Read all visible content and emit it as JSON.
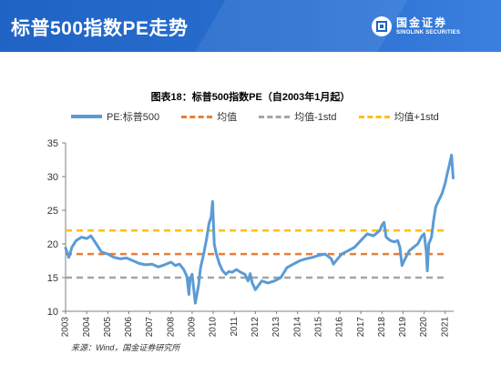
{
  "header": {
    "title": "标普500指数PE走势",
    "logo_cn": "国金证券",
    "logo_en": "SINOLINK SECURITIES"
  },
  "source_note": "来源：Wind，国金证券研究所",
  "colors": {
    "header_bg": "#2a6fd0",
    "pe_line": "#5b9bd5",
    "mean": "#ed7d31",
    "minus1std": "#a5a5a5",
    "plus1std": "#ffc000"
  },
  "chart_data": {
    "type": "line",
    "title": "图表18：标普500指数PE（自2003年1月起）",
    "legend": [
      "PE:标普500",
      "均值",
      "均值-1std",
      "均值+1std"
    ],
    "xlabel": "",
    "ylabel": "",
    "xlim": [
      2003,
      2021.4
    ],
    "ylim": [
      10,
      35
    ],
    "x_ticks": [
      "2003",
      "2004",
      "2005",
      "2006",
      "2007",
      "2008",
      "2009",
      "2010",
      "2011",
      "2012",
      "2013",
      "2014",
      "2015",
      "2016",
      "2017",
      "2018",
      "2019",
      "2020",
      "2021"
    ],
    "y_ticks": [
      "10",
      "15",
      "20",
      "25",
      "30",
      "35"
    ],
    "grid": false,
    "legend_position": "top",
    "series": [
      {
        "name": "PE:标普500",
        "style": "solid",
        "x": [
          2003.0,
          2003.15,
          2003.3,
          2003.5,
          2003.75,
          2004.0,
          2004.2,
          2004.5,
          2004.7,
          2005.0,
          2005.3,
          2005.6,
          2005.9,
          2006.2,
          2006.5,
          2006.8,
          2007.1,
          2007.4,
          2007.7,
          2008.0,
          2008.2,
          2008.4,
          2008.6,
          2008.75,
          2008.85,
          2008.9,
          2009.0,
          2009.15,
          2009.3,
          2009.4,
          2009.55,
          2009.7,
          2009.8,
          2009.9,
          2009.97,
          2010.05,
          2010.15,
          2010.3,
          2010.45,
          2010.6,
          2010.75,
          2010.9,
          2011.1,
          2011.3,
          2011.5,
          2011.65,
          2011.75,
          2011.85,
          2012.0,
          2012.3,
          2012.6,
          2012.9,
          2013.2,
          2013.5,
          2013.8,
          2014.1,
          2014.4,
          2014.7,
          2015.0,
          2015.3,
          2015.6,
          2015.7,
          2015.9,
          2016.1,
          2016.4,
          2016.7,
          2017.0,
          2017.3,
          2017.6,
          2017.9,
          2018.0,
          2018.1,
          2018.2,
          2018.4,
          2018.6,
          2018.75,
          2018.85,
          2018.95,
          2019.1,
          2019.3,
          2019.5,
          2019.7,
          2019.9,
          2020.0,
          2020.1,
          2020.15,
          2020.22,
          2020.35,
          2020.45,
          2020.55,
          2020.7,
          2020.85,
          2021.0,
          2021.1,
          2021.2,
          2021.3,
          2021.38
        ],
        "values": [
          19.4,
          18.0,
          19.5,
          20.5,
          21.0,
          20.8,
          21.2,
          19.8,
          18.8,
          18.5,
          18.0,
          17.8,
          17.9,
          17.5,
          17.1,
          16.9,
          17.0,
          16.6,
          16.9,
          17.3,
          16.8,
          17.0,
          16.2,
          15.2,
          12.5,
          14.8,
          15.5,
          11.2,
          13.8,
          16.5,
          18.5,
          21.0,
          23.0,
          24.0,
          26.3,
          20.0,
          18.5,
          17.0,
          16.0,
          15.5,
          15.9,
          15.8,
          16.2,
          15.8,
          15.5,
          14.5,
          15.6,
          14.2,
          13.2,
          14.5,
          14.2,
          14.5,
          15.0,
          16.5,
          17.0,
          17.5,
          17.8,
          18.0,
          18.3,
          18.5,
          17.8,
          17.0,
          17.8,
          18.5,
          19.0,
          19.5,
          20.5,
          21.5,
          21.2,
          22.0,
          22.8,
          23.2,
          21.0,
          20.5,
          20.3,
          20.5,
          19.5,
          16.8,
          17.8,
          19.0,
          19.5,
          20.0,
          21.2,
          21.5,
          19.0,
          16.0,
          20.0,
          21.0,
          23.5,
          25.5,
          26.5,
          27.5,
          29.0,
          30.5,
          31.8,
          33.2,
          29.8
        ]
      },
      {
        "name": "均值",
        "style": "dashed",
        "value": 18.5
      },
      {
        "name": "均值-1std",
        "style": "dashed",
        "value": 15.0
      },
      {
        "name": "均值+1std",
        "style": "dashed",
        "value": 22.0
      }
    ]
  }
}
